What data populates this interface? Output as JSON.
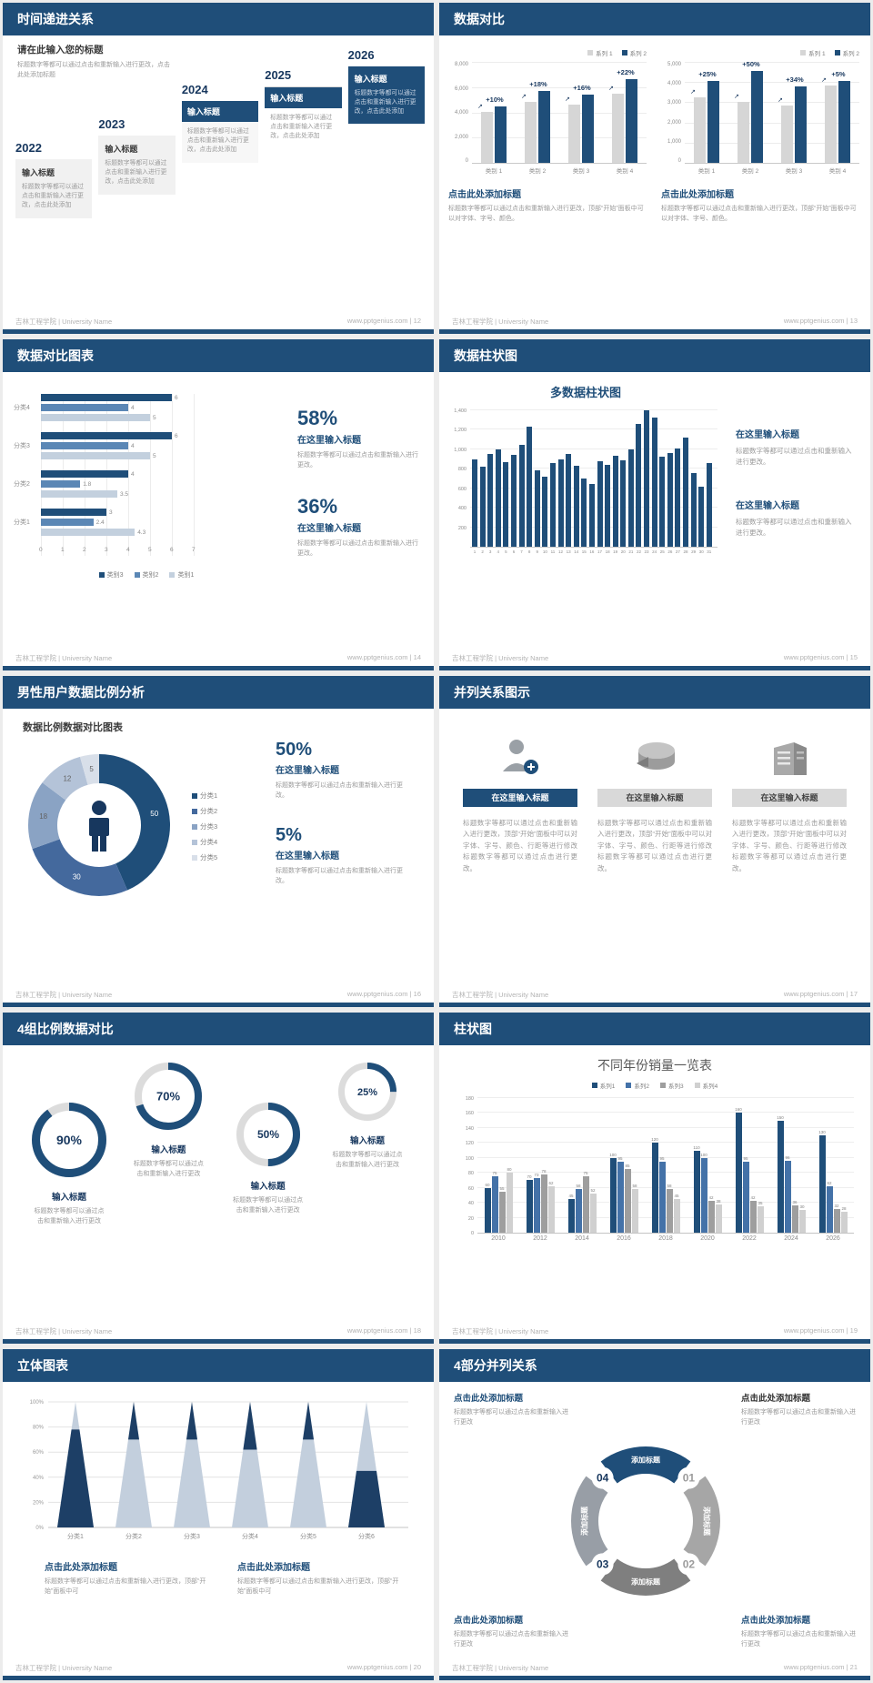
{
  "footer_left": "吉林工程学院 | University Name",
  "site": "www.pptgenius.com",
  "footer_sep": " | ",
  "slides": {
    "s12": {
      "header": "时间递进关系",
      "page": "12",
      "intro_title": "请在此输入您的标题",
      "intro_body": "标题数字等都可以通过点击和重新输入进行更改，点击此处添加标题",
      "item_body": "标题数字等都可以通过点击和重新输入进行更改，点击此处添加",
      "items": [
        {
          "year": "2022",
          "title": "输入标题",
          "style": "gray"
        },
        {
          "year": "2023",
          "title": "输入标题",
          "style": "gray"
        },
        {
          "year": "2024",
          "title": "输入标题",
          "style": "bar"
        },
        {
          "year": "2025",
          "title": "输入标题",
          "style": "bar2"
        },
        {
          "year": "2026",
          "title": "输入标题",
          "style": "solid"
        }
      ]
    },
    "s13": {
      "header": "数据对比",
      "page": "13",
      "charts": [
        {
          "type": "bar",
          "legend": [
            "系列 1",
            "系列 2"
          ],
          "categories": [
            "类别 1",
            "类别 2",
            "类别 3",
            "类别 4"
          ],
          "series": [
            {
              "name": "系列 1",
              "color": "#d6d6d6",
              "values": [
                4000,
                4800,
                4600,
                5400
              ]
            },
            {
              "name": "系列 2",
              "color": "#1f4e79",
              "values": [
                4400,
                5650,
                5350,
                6600
              ]
            }
          ],
          "pct_labels": [
            "+10%",
            "+18%",
            "+16%",
            "+22%"
          ],
          "y_ticks": [
            "8,000",
            "6,000",
            "4,000",
            "2,000",
            "0"
          ],
          "ymax": 8000,
          "caption_title": "点击此处添加标题",
          "caption_body": "标题数字等都可以通过点击和重新输入进行更改，顶部“开始”面板中可以对字体、字号、颜色。"
        },
        {
          "type": "bar",
          "legend": [
            "系列 1",
            "系列 2"
          ],
          "categories": [
            "类别 1",
            "类别 2",
            "类别 3",
            "类别 4"
          ],
          "series": [
            {
              "name": "系列 1",
              "color": "#d6d6d6",
              "values": [
                3200,
                3000,
                2800,
                3800
              ]
            },
            {
              "name": "系列 2",
              "color": "#1f4e79",
              "values": [
                4000,
                4500,
                3750,
                4000
              ]
            }
          ],
          "pct_labels": [
            "+25%",
            "+50%",
            "+34%",
            "+5%"
          ],
          "y_ticks": [
            "5,000",
            "4,000",
            "3,000",
            "2,000",
            "1,000",
            "0"
          ],
          "ymax": 5000,
          "caption_title": "点击此处添加标题",
          "caption_body": "标题数字等都可以通过点击和重新输入进行更改，顶部“开始”面板中可以对字体、字号、颜色。"
        }
      ]
    },
    "s14": {
      "header": "数据对比图表",
      "page": "14",
      "chart": {
        "type": "horizontal-bar",
        "series_names": [
          "类别3",
          "类别2",
          "类别1"
        ],
        "colors": [
          "#1f4e79",
          "#5b87b5",
          "#c3d0de"
        ],
        "groups": [
          {
            "label": "分类4",
            "values": [
              6,
              4,
              5
            ]
          },
          {
            "label": "分类3",
            "values": [
              6,
              4,
              5
            ]
          },
          {
            "label": "分类2",
            "values": [
              4,
              1.8,
              3.5
            ]
          },
          {
            "label": "分类1",
            "values": [
              3,
              2.4,
              4.3
            ]
          }
        ],
        "x_ticks": [
          "0",
          "1",
          "2",
          "3",
          "4",
          "5",
          "6",
          "7"
        ],
        "xmax": 7
      },
      "stats": [
        {
          "pct": "58%",
          "title": "在这里输入标题",
          "body": "标题数字等都可以通过点击和重新输入进行更改。"
        },
        {
          "pct": "36%",
          "title": "在这里输入标题",
          "body": "标题数字等都可以通过点击和重新输入进行更改。"
        }
      ]
    },
    "s15": {
      "header": "数据柱状图",
      "page": "15",
      "chart": {
        "type": "bar",
        "title": "多数据柱状图",
        "y_ticks": [
          "1,400",
          "1,200",
          "1,000",
          "800",
          "600",
          "400",
          "200"
        ],
        "ymax": 1400,
        "x_labels": [
          "1",
          "2",
          "3",
          "4",
          "5",
          "6",
          "7",
          "8",
          "9",
          "10",
          "11",
          "12",
          "13",
          "14",
          "15",
          "16",
          "17",
          "18",
          "19",
          "20",
          "21",
          "22",
          "23",
          "24",
          "25",
          "26",
          "27",
          "28",
          "29",
          "30",
          "31"
        ],
        "values": [
          900,
          820,
          950,
          1000,
          870,
          940,
          1050,
          1230,
          780,
          720,
          860,
          900,
          950,
          830,
          700,
          640,
          880,
          840,
          930,
          890,
          1000,
          1260,
          1400,
          1330,
          920,
          960,
          1010,
          1120,
          760,
          620,
          860
        ]
      },
      "blocks": [
        {
          "title": "在这里输入标题",
          "body": "标题数字等都可以通过点击和重新输入进行更改。"
        },
        {
          "title": "在这里输入标题",
          "body": "标题数字等都可以通过点击和重新输入进行更改。"
        }
      ]
    },
    "s16": {
      "header": "男性用户数据比例分析",
      "page": "16",
      "title": "数据比例数据对比图表",
      "donut": {
        "type": "pie",
        "values": [
          50,
          30,
          18,
          12,
          5
        ],
        "labels": [
          "50",
          "30",
          "18",
          "12",
          "5"
        ],
        "colors": [
          "#1f4e79",
          "#44699d",
          "#8aa3c4",
          "#b4c3d8",
          "#d8dfe9"
        ],
        "legend": [
          "分类1",
          "分类2",
          "分类3",
          "分类4",
          "分类5"
        ]
      },
      "stats": [
        {
          "pct": "50%",
          "title": "在这里输入标题",
          "body": "标题数字等都可以通过点击和重新输入进行更改。"
        },
        {
          "pct": "5%",
          "title": "在这里输入标题",
          "body": "标题数字等都可以通过点击和重新输入进行更改。"
        }
      ]
    },
    "s17": {
      "header": "并列关系图示",
      "page": "17",
      "columns": [
        {
          "icon": "person-plus-icon",
          "header": "在这里输入标题",
          "style": "blue",
          "body": "标题数字等都可以通过点击和重新输入进行更改，顶部“开始”面板中可以对字体、字号、颜色、行距等进行修改标题数字等都可以通过点击进行更改。"
        },
        {
          "icon": "pie-3d-icon",
          "header": "在这里输入标题",
          "style": "gray",
          "body": "标题数字等都可以通过点击和重新输入进行更改，顶部“开始”面板中可以对字体、字号、颜色、行距等进行修改标题数字等都可以通过点击进行更改。"
        },
        {
          "icon": "building-icon",
          "header": "在这里输入标题",
          "style": "gray",
          "body": "标题数字等都可以通过点击和重新输入进行更改，顶部“开始”面板中可以对字体、字号、颜色、行距等进行修改标题数字等都可以通过点击进行更改。"
        }
      ]
    },
    "s18": {
      "header": "4组比例数据对比",
      "page": "18",
      "rings": [
        {
          "pct": 90,
          "label": "90%",
          "title": "输入标题",
          "body": "标题数字等都可以通过点击和重新输入进行更改"
        },
        {
          "pct": 70,
          "label": "70%",
          "title": "输入标题",
          "body": "标题数字等都可以通过点击和重新输入进行更改"
        },
        {
          "pct": 50,
          "label": "50%",
          "title": "输入标题",
          "body": "标题数字等都可以通过点击和重新输入进行更改"
        },
        {
          "pct": 25,
          "label": "25%",
          "title": "输入标题",
          "body": "标题数字等都可以通过点击和重新输入进行更改"
        }
      ]
    },
    "s19": {
      "header": "柱状图",
      "page": "19",
      "chart": {
        "type": "bar",
        "title": "不同年份销量一览表",
        "legend": [
          "系列1",
          "系列2",
          "系列3",
          "系列4"
        ],
        "colors": [
          "#1f4e79",
          "#4472a8",
          "#9e9e9e",
          "#d0d0d0"
        ],
        "categories": [
          "2010",
          "2012",
          "2014",
          "2016",
          "2018",
          "2020",
          "2022",
          "2024",
          "2026"
        ],
        "series": [
          {
            "name": "系列1",
            "values": [
              60,
              70,
              45,
              100,
              120,
              110,
              160,
              150,
              130
            ]
          },
          {
            "name": "系列2",
            "values": [
              75,
              73,
              58,
              95,
              95,
              100,
              95,
              96,
              62
            ]
          },
          {
            "name": "系列3",
            "values": [
              55,
              78,
              75,
              85,
              58,
              42,
              42,
              36,
              32
            ]
          },
          {
            "name": "系列4",
            "values": [
              80,
              62,
              52,
              58,
              45,
              38,
              35,
              30,
              28
            ]
          }
        ],
        "y_ticks": [
          "180",
          "160",
          "140",
          "120",
          "100",
          "80",
          "60",
          "40",
          "20",
          "0"
        ],
        "ymax": 180
      }
    },
    "s20": {
      "header": "立体图表",
      "page": "20",
      "y_ticks": [
        "100%",
        "80%",
        "60%",
        "40%",
        "20%",
        "0%"
      ],
      "cones": [
        {
          "label": "分类1",
          "dark": "bottom",
          "split": 0.78
        },
        {
          "label": "分类2",
          "dark": "top",
          "split": 0.3
        },
        {
          "label": "分类3",
          "dark": "top",
          "split": 0.3
        },
        {
          "label": "分类4",
          "dark": "top",
          "split": 0.38
        },
        {
          "label": "分类5",
          "dark": "top",
          "split": 0.3
        },
        {
          "label": "分类6",
          "dark": "bottom",
          "split": 0.45
        }
      ],
      "captions": [
        {
          "title": "点击此处添加标题",
          "body": "标题数字等都可以通过点击和重新输入进行更改，顶部“开始”面板中可"
        },
        {
          "title": "点击此处添加标题",
          "body": "标题数字等都可以通过点击和重新输入进行更改，顶部“开始”面板中可"
        }
      ]
    },
    "s21": {
      "header": "4部分并列关系",
      "page": "21",
      "arcs": [
        {
          "label": "添加标题",
          "color": "#1f4e79",
          "pos": "top"
        },
        {
          "label": "添加标题",
          "color": "#a6a6a6",
          "pos": "right"
        },
        {
          "label": "添加标题",
          "color": "#7f7f7f",
          "pos": "bottom"
        },
        {
          "label": "添加标题",
          "color": "#989ea6",
          "pos": "left"
        }
      ],
      "nums": [
        {
          "text": "01",
          "color": "#9b9b9b",
          "pos": "ne"
        },
        {
          "text": "02",
          "color": "#9b9b9b",
          "pos": "se"
        },
        {
          "text": "03",
          "color": "#17375e",
          "pos": "sw"
        },
        {
          "text": "04",
          "color": "#17375e",
          "pos": "nw"
        }
      ],
      "blocks": [
        {
          "pos": "tl",
          "title": "点击此处添加标题",
          "title_color": "blue",
          "body": "标题数字等都可以通过点击和重新输入进行更改"
        },
        {
          "pos": "tr",
          "title": "点击此处添加标题",
          "title_color": "dark",
          "body": "标题数字等都可以通过点击和重新输入进行更改"
        },
        {
          "pos": "bl",
          "title": "点击此处添加标题",
          "title_color": "blue",
          "body": "标题数字等都可以通过点击和重新输入进行更改"
        },
        {
          "pos": "br",
          "title": "点击此处添加标题",
          "title_color": "blue",
          "body": "标题数字等都可以通过点击和重新输入进行更改"
        }
      ]
    }
  }
}
